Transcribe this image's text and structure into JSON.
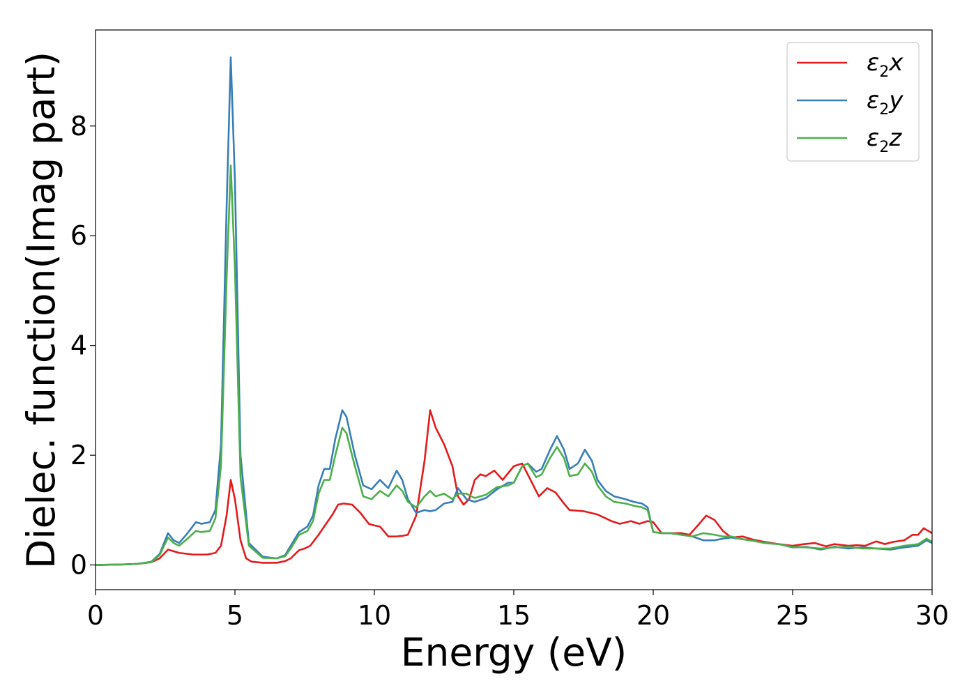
{
  "chart_data": {
    "type": "line",
    "xlabel": "Energy (eV)",
    "ylabel": "Dielec. function(Imag part)",
    "xlim": [
      0,
      30
    ],
    "ylim": [
      -0.45,
      9.75
    ],
    "xticks": [
      "0",
      "5",
      "10",
      "15",
      "20",
      "25",
      "30"
    ],
    "yticks": [
      "0",
      "2",
      "4",
      "6",
      "8"
    ],
    "grid": false,
    "legend_position": "top-right",
    "series": [
      {
        "name": "ε2x",
        "legend_symbol": "ε",
        "legend_subscript": "2",
        "legend_suffix": "x",
        "color": "#e41a1c",
        "x": [
          0,
          1,
          1.5,
          2,
          2.3,
          2.6,
          2.8,
          3.0,
          3.5,
          4.0,
          4.3,
          4.5,
          4.7,
          4.85,
          5.0,
          5.2,
          5.4,
          5.6,
          6.0,
          6.5,
          6.8,
          7.0,
          7.3,
          7.5,
          7.7,
          8.0,
          8.2,
          8.5,
          8.7,
          8.9,
          9.2,
          9.5,
          9.8,
          10.0,
          10.2,
          10.5,
          10.8,
          11.0,
          11.2,
          11.5,
          11.8,
          12.0,
          12.2,
          12.5,
          12.8,
          13.0,
          13.2,
          13.4,
          13.6,
          13.8,
          14.0,
          14.3,
          14.6,
          15.0,
          15.3,
          15.6,
          15.9,
          16.2,
          16.5,
          16.8,
          17.0,
          17.5,
          18.0,
          18.5,
          18.8,
          19.2,
          19.5,
          19.8,
          20.0,
          20.3,
          20.6,
          21.0,
          21.3,
          21.6,
          21.9,
          22.2,
          22.5,
          22.8,
          23.2,
          23.6,
          24.0,
          24.5,
          25.0,
          25.4,
          25.8,
          26.2,
          26.5,
          27.0,
          27.3,
          27.6,
          28.0,
          28.3,
          28.6,
          29.0,
          29.3,
          29.5,
          29.7,
          30.0
        ],
        "y": [
          0,
          0.01,
          0.02,
          0.05,
          0.12,
          0.28,
          0.25,
          0.22,
          0.19,
          0.19,
          0.22,
          0.35,
          0.9,
          1.55,
          1.2,
          0.45,
          0.12,
          0.06,
          0.04,
          0.04,
          0.07,
          0.12,
          0.27,
          0.3,
          0.35,
          0.55,
          0.7,
          0.92,
          1.1,
          1.12,
          1.1,
          0.95,
          0.75,
          0.72,
          0.7,
          0.52,
          0.52,
          0.53,
          0.55,
          0.9,
          1.9,
          2.82,
          2.5,
          2.2,
          1.8,
          1.25,
          1.1,
          1.2,
          1.55,
          1.65,
          1.62,
          1.72,
          1.55,
          1.8,
          1.85,
          1.55,
          1.25,
          1.4,
          1.32,
          1.12,
          1.0,
          0.98,
          0.92,
          0.8,
          0.75,
          0.8,
          0.75,
          0.8,
          0.78,
          0.58,
          0.58,
          0.58,
          0.55,
          0.72,
          0.9,
          0.82,
          0.62,
          0.5,
          0.52,
          0.46,
          0.42,
          0.38,
          0.35,
          0.38,
          0.4,
          0.34,
          0.38,
          0.35,
          0.36,
          0.35,
          0.43,
          0.38,
          0.42,
          0.45,
          0.55,
          0.55,
          0.67,
          0.58
        ]
      },
      {
        "name": "ε2y",
        "legend_symbol": "ε",
        "legend_subscript": "2",
        "legend_suffix": "y",
        "color": "#377eb8",
        "x": [
          0,
          1,
          1.5,
          2,
          2.3,
          2.6,
          2.8,
          3.0,
          3.3,
          3.6,
          3.8,
          4.1,
          4.3,
          4.5,
          4.7,
          4.85,
          5.0,
          5.2,
          5.5,
          6.0,
          6.5,
          6.8,
          7.0,
          7.3,
          7.6,
          7.8,
          8.0,
          8.2,
          8.4,
          8.6,
          8.85,
          9.0,
          9.3,
          9.6,
          9.9,
          10.2,
          10.5,
          10.8,
          11.0,
          11.2,
          11.5,
          11.8,
          12.0,
          12.2,
          12.5,
          12.8,
          13.0,
          13.3,
          13.6,
          14.0,
          14.4,
          14.8,
          15.0,
          15.3,
          15.5,
          15.8,
          16.0,
          16.3,
          16.55,
          16.8,
          17.0,
          17.3,
          17.55,
          17.8,
          18.0,
          18.3,
          18.6,
          19.0,
          19.3,
          19.6,
          19.8,
          20.0,
          20.3,
          20.6,
          21.0,
          21.4,
          21.8,
          22.2,
          22.5,
          22.8,
          23.2,
          23.6,
          24.0,
          24.5,
          25.0,
          25.5,
          26.0,
          26.5,
          27.0,
          27.5,
          28.0,
          28.5,
          29.0,
          29.5,
          29.8,
          30.0
        ],
        "y": [
          0,
          0.01,
          0.02,
          0.06,
          0.2,
          0.58,
          0.45,
          0.4,
          0.58,
          0.78,
          0.75,
          0.78,
          1.0,
          2.2,
          6.5,
          9.25,
          7.0,
          2.0,
          0.4,
          0.15,
          0.12,
          0.18,
          0.35,
          0.6,
          0.7,
          0.9,
          1.45,
          1.75,
          1.75,
          2.3,
          2.82,
          2.7,
          2.0,
          1.45,
          1.38,
          1.55,
          1.4,
          1.72,
          1.55,
          1.2,
          0.95,
          1.0,
          0.98,
          1.0,
          1.12,
          1.15,
          1.4,
          1.2,
          1.15,
          1.22,
          1.38,
          1.5,
          1.5,
          1.8,
          1.85,
          1.7,
          1.75,
          2.1,
          2.35,
          2.1,
          1.75,
          1.85,
          2.1,
          1.9,
          1.55,
          1.35,
          1.25,
          1.2,
          1.15,
          1.12,
          1.05,
          0.6,
          0.58,
          0.58,
          0.55,
          0.52,
          0.45,
          0.45,
          0.48,
          0.5,
          0.47,
          0.44,
          0.4,
          0.38,
          0.32,
          0.33,
          0.28,
          0.33,
          0.3,
          0.32,
          0.3,
          0.28,
          0.32,
          0.35,
          0.45,
          0.4
        ]
      },
      {
        "name": "ε2z",
        "legend_symbol": "ε",
        "legend_subscript": "2",
        "legend_suffix": "z",
        "color": "#4daf4a",
        "x": [
          0,
          1,
          1.5,
          2,
          2.3,
          2.6,
          2.8,
          3.0,
          3.3,
          3.6,
          3.8,
          4.1,
          4.3,
          4.5,
          4.7,
          4.85,
          5.0,
          5.2,
          5.5,
          6.0,
          6.5,
          6.8,
          7.0,
          7.3,
          7.6,
          7.8,
          8.0,
          8.2,
          8.4,
          8.6,
          8.85,
          9.0,
          9.3,
          9.6,
          9.9,
          10.2,
          10.5,
          10.8,
          11.0,
          11.2,
          11.5,
          11.8,
          12.0,
          12.2,
          12.5,
          12.8,
          13.0,
          13.3,
          13.6,
          14.0,
          14.4,
          14.8,
          15.0,
          15.3,
          15.5,
          15.8,
          16.0,
          16.3,
          16.55,
          16.8,
          17.0,
          17.3,
          17.55,
          17.8,
          18.0,
          18.3,
          18.6,
          19.0,
          19.3,
          19.6,
          19.8,
          20.0,
          20.3,
          20.6,
          21.0,
          21.4,
          21.8,
          22.2,
          22.5,
          22.8,
          23.2,
          23.6,
          24.0,
          24.5,
          25.0,
          25.5,
          26.0,
          26.5,
          27.0,
          27.5,
          28.0,
          28.5,
          29.0,
          29.5,
          29.8,
          30.0
        ],
        "y": [
          0,
          0.01,
          0.02,
          0.05,
          0.18,
          0.5,
          0.4,
          0.35,
          0.48,
          0.62,
          0.6,
          0.62,
          0.85,
          1.8,
          5.2,
          7.28,
          5.4,
          1.6,
          0.35,
          0.13,
          0.12,
          0.16,
          0.3,
          0.55,
          0.62,
          0.8,
          1.3,
          1.55,
          1.55,
          2.0,
          2.5,
          2.4,
          1.8,
          1.25,
          1.2,
          1.35,
          1.25,
          1.45,
          1.35,
          1.15,
          1.05,
          1.25,
          1.35,
          1.25,
          1.3,
          1.2,
          1.3,
          1.3,
          1.22,
          1.28,
          1.42,
          1.45,
          1.5,
          1.8,
          1.85,
          1.6,
          1.65,
          1.95,
          2.15,
          1.95,
          1.62,
          1.65,
          1.85,
          1.7,
          1.45,
          1.25,
          1.15,
          1.12,
          1.08,
          1.05,
          1.0,
          0.6,
          0.58,
          0.58,
          0.55,
          0.52,
          0.58,
          0.55,
          0.52,
          0.52,
          0.47,
          0.44,
          0.4,
          0.38,
          0.33,
          0.32,
          0.3,
          0.32,
          0.33,
          0.3,
          0.3,
          0.3,
          0.35,
          0.38,
          0.48,
          0.42
        ]
      }
    ]
  }
}
